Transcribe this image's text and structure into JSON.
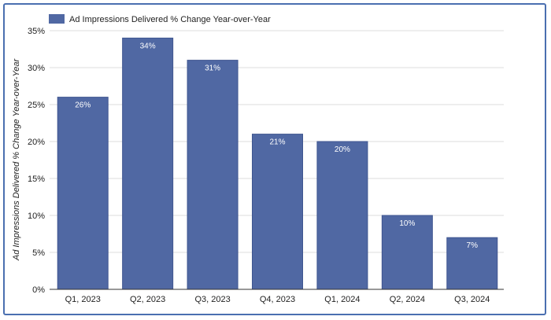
{
  "chart_data": {
    "type": "bar",
    "categories": [
      "Q1, 2023",
      "Q2, 2023",
      "Q3, 2023",
      "Q4, 2023",
      "Q1, 2024",
      "Q2, 2024",
      "Q3, 2024"
    ],
    "series": [
      {
        "name": "Ad Impressions Delivered % Change Year-over-Year",
        "values": [
          26,
          34,
          31,
          21,
          20,
          10,
          7
        ]
      }
    ],
    "value_labels": [
      "26%",
      "34%",
      "31%",
      "21%",
      "20%",
      "10%",
      "7%"
    ],
    "ylabel": "Ad Impressions Delivered % Change Year-over-Year",
    "xlabel": "",
    "ylim": [
      0,
      35
    ],
    "yticks": [
      0,
      5,
      10,
      15,
      20,
      25,
      30,
      35
    ],
    "ytick_labels": [
      "0%",
      "5%",
      "10%",
      "15%",
      "20%",
      "25%",
      "30%",
      "35%"
    ],
    "grid": true,
    "legend_position": "top-left",
    "colors": {
      "bar": "#5068a3",
      "grid": "#dddddd",
      "frame": "#4a6fb0",
      "axis": "#333333"
    }
  }
}
